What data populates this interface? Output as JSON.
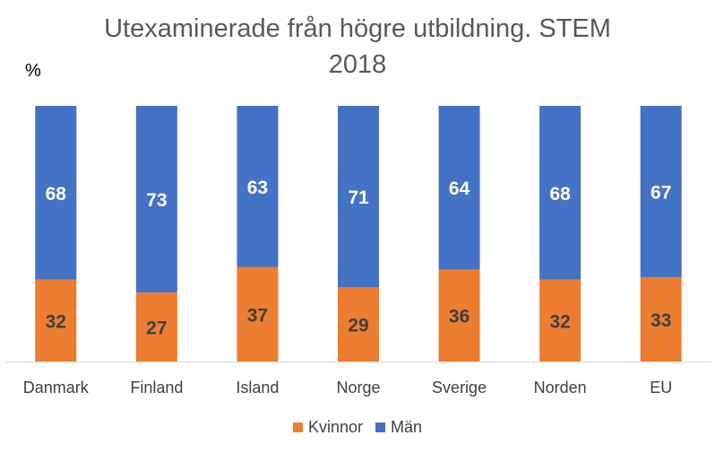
{
  "chart_data": {
    "type": "bar",
    "stacked": true,
    "title": [
      "Utexaminerade från högre utbildning. STEM",
      "2018"
    ],
    "ylabel": "%",
    "ylim": [
      0,
      100
    ],
    "grid": false,
    "legend_position": "bottom",
    "categories": [
      "Danmark",
      "Finland",
      "Island",
      "Norge",
      "Sverige",
      "Norden",
      "EU"
    ],
    "series": [
      {
        "name": "Kvinnor",
        "color": "#ED7D31",
        "values": [
          32,
          27,
          37,
          29,
          36,
          32,
          33
        ]
      },
      {
        "name": "Män",
        "color": "#4472C4",
        "values": [
          68,
          73,
          63,
          71,
          64,
          68,
          67
        ]
      }
    ]
  }
}
